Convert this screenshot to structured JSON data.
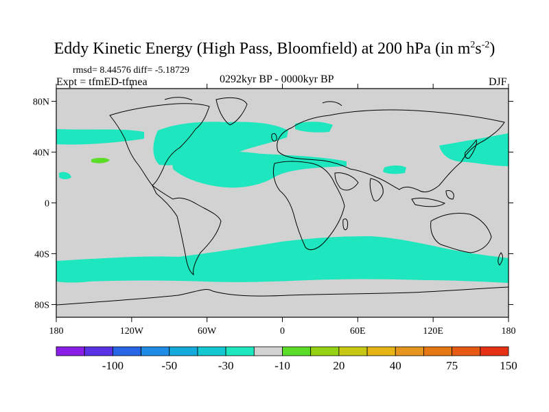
{
  "title": {
    "main": "Eddy Kinetic Energy (High Pass, Bloomfield) at 200 hPa (in m",
    "sup1": "2",
    "mid": "s",
    "sup2": "-2",
    "end": ")"
  },
  "stats": {
    "rmsd_label": "rmsd= 8.44576 diff= -5.18729"
  },
  "experiment": {
    "label": "Expt = tfmED-tfmea"
  },
  "period": {
    "label": "0292kyr BP - 0000kyr BP"
  },
  "season": {
    "label": "DJF"
  },
  "axes": {
    "lat_labels": [
      "80N",
      "40N",
      "0",
      "40S",
      "80S"
    ],
    "lon_labels": [
      "180",
      "120W",
      "60W",
      "0",
      "60E",
      "120E",
      "180"
    ]
  },
  "colorbar": {
    "colors": [
      "#8a1ee6",
      "#5a32e6",
      "#2864e6",
      "#1e8ce6",
      "#14aadc",
      "#14c8d2",
      "#1ee6be",
      "#d2d2d2",
      "#5adc28",
      "#96d214",
      "#c8c814",
      "#e6b414",
      "#e6961e",
      "#e67814",
      "#e65a14",
      "#e63214"
    ],
    "labels": [
      "-100",
      "-50",
      "-30",
      "-10",
      "20",
      "40",
      "75",
      "150"
    ],
    "land_color": "#d2d2d2",
    "anomaly_color": "#1ee6be",
    "positive_color": "#5adc28"
  }
}
